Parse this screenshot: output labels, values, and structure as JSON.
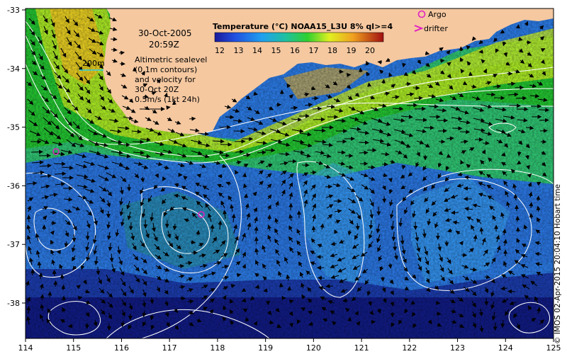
{
  "map": {
    "date": "30-Oct-2005",
    "time": "20:59Z",
    "scale_bar_label": "200m",
    "sealevel_note": [
      "Altimetric sealevel",
      "(0.1m contours)",
      "and velocity for",
      "30-Oct 20Z"
    ],
    "velocity_scale_label": "0.5m/s (1kt 24h)",
    "legend": {
      "title": "Temperature (°C) NOAA15_L3U 8% ql>=4",
      "ticks": [
        "12",
        "13",
        "14",
        "15",
        "16",
        "17",
        "18",
        "19",
        "20"
      ]
    },
    "markers": {
      "argo_label": "Argo",
      "drifter_label": "drifter"
    },
    "x_axis_ticks": [
      "114",
      "115",
      "116",
      "117",
      "118",
      "119",
      "120",
      "121",
      "122",
      "123",
      "124",
      "125"
    ],
    "y_axis_ticks": [
      "-33",
      "-34",
      "-35",
      "-36",
      "-37",
      "-38"
    ],
    "credit": "© IMOS 02-Apr-2015 20:04:10 Hobart time",
    "colors": {
      "land": "#f5c8a0",
      "argo": "#e020c0",
      "deep_blue": "#1a2a9a",
      "green": "#22c030",
      "yellow": "#f0f020"
    }
  }
}
